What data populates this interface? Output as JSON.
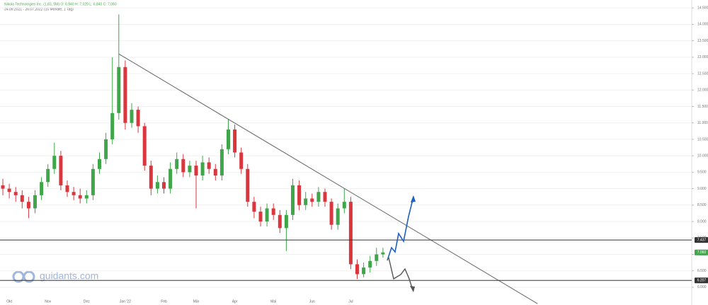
{
  "header": {
    "instrument": "Nikola Technologies Inc. (1,83, 5M)  O: 6,940  H: 7,020  L: 6,840  C: 7,060",
    "period": "24.09.2021 - 26.07.2022 (10 Monate, 1 Tag)"
  },
  "watermark": "guidants.com",
  "chart_data": {
    "type": "candlestick",
    "categories": [
      null,
      "Okt",
      null,
      null,
      null,
      null,
      null,
      "Nov",
      null,
      null,
      null,
      null,
      null,
      "Dez",
      null,
      null,
      null,
      null,
      null,
      "Jan '22",
      null,
      null,
      null,
      null,
      null,
      "Feb",
      null,
      null,
      null,
      null,
      "Mär",
      null,
      null,
      null,
      null,
      null,
      "Apr",
      null,
      null,
      null,
      null,
      null,
      "Mai",
      null,
      null,
      null,
      null,
      null,
      "Jun",
      null,
      null,
      null,
      null,
      null,
      "Jul",
      null,
      null,
      null,
      null,
      null
    ],
    "open": [
      9.1,
      9.0,
      8.9,
      8.8,
      8.6,
      8.4,
      8.8,
      9.2,
      9.6,
      10.0,
      9.1,
      8.9,
      8.8,
      8.7,
      8.8,
      9.6,
      9.9,
      10.5,
      11.3,
      12.7,
      11.0,
      11.4,
      10.9,
      9.7,
      9.0,
      9.2,
      9.0,
      9.6,
      9.9,
      9.5,
      9.7,
      9.4,
      9.8,
      9.6,
      9.4,
      10.2,
      10.8,
      10.1,
      9.6,
      8.6,
      8.3,
      8.0,
      8.4,
      8.2,
      7.8,
      8.2,
      9.1,
      8.5,
      8.7,
      8.6,
      8.9,
      8.6,
      7.9,
      8.4,
      8.6,
      6.7,
      6.4,
      6.6,
      6.8,
      7.0
    ],
    "high": [
      9.3,
      9.15,
      9.05,
      8.95,
      8.75,
      8.95,
      9.35,
      9.75,
      10.4,
      10.15,
      9.25,
      9.05,
      9.0,
      8.95,
      9.75,
      10.1,
      10.7,
      13.0,
      14.3,
      12.9,
      11.6,
      11.5,
      11.0,
      9.85,
      9.4,
      9.35,
      9.8,
      10.1,
      10.05,
      9.85,
      9.85,
      10.0,
      9.95,
      9.75,
      10.35,
      11.1,
      10.95,
      10.25,
      9.75,
      8.75,
      8.45,
      8.55,
      8.55,
      8.35,
      8.35,
      9.3,
      9.25,
      8.9,
      8.85,
      9.05,
      9.0,
      8.7,
      8.55,
      9.0,
      8.75,
      6.85,
      6.75,
      6.95,
      7.2,
      7.2
    ],
    "low": [
      8.8,
      8.7,
      8.6,
      8.4,
      8.1,
      8.25,
      8.65,
      9.05,
      9.45,
      8.95,
      8.75,
      8.65,
      8.55,
      8.55,
      8.65,
      9.45,
      9.75,
      10.35,
      11.1,
      10.8,
      10.85,
      10.7,
      9.55,
      8.8,
      8.85,
      8.85,
      8.85,
      9.45,
      9.35,
      9.35,
      8.4,
      9.25,
      9.45,
      9.25,
      9.25,
      10.05,
      9.95,
      9.45,
      8.45,
      8.1,
      7.85,
      7.85,
      8.05,
      7.65,
      7.1,
      8.05,
      8.35,
      8.35,
      8.45,
      8.45,
      8.45,
      7.75,
      7.75,
      8.25,
      6.55,
      6.25,
      6.3,
      6.45,
      6.65,
      6.9
    ],
    "close": [
      9.0,
      8.9,
      8.8,
      8.6,
      8.4,
      8.8,
      9.2,
      9.6,
      10.0,
      9.1,
      8.9,
      8.8,
      8.7,
      8.8,
      9.6,
      9.9,
      10.5,
      11.3,
      12.7,
      11.0,
      11.4,
      10.9,
      9.7,
      9.0,
      9.2,
      9.0,
      9.6,
      9.9,
      9.5,
      9.7,
      9.4,
      9.8,
      9.6,
      9.4,
      10.2,
      10.8,
      10.1,
      9.6,
      8.6,
      8.3,
      8.0,
      8.4,
      8.2,
      7.8,
      8.2,
      9.1,
      8.5,
      8.7,
      8.6,
      8.9,
      8.6,
      7.9,
      8.4,
      8.6,
      6.7,
      6.4,
      6.6,
      6.8,
      7.0,
      7.06
    ],
    "up_color": "#3fa64a",
    "down_color": "#d9363e",
    "ylim": [
      5.46,
      14.74
    ],
    "yticks": [
      {
        "value": 6,
        "label": "6.000"
      },
      {
        "value": 6.5,
        "label": "6.500"
      },
      {
        "value": 7,
        "label": "7.000"
      },
      {
        "value": 7.5,
        "label": "7.500"
      },
      {
        "value": 8,
        "label": "8.000"
      },
      {
        "value": 8.5,
        "label": "8.500"
      },
      {
        "value": 9,
        "label": "9.000"
      },
      {
        "value": 9.5,
        "label": "9.500"
      },
      {
        "value": 10,
        "label": "10.000"
      },
      {
        "value": 10.5,
        "label": "10.500"
      },
      {
        "value": 11,
        "label": "11.000"
      },
      {
        "value": 11.5,
        "label": "11.500"
      },
      {
        "value": 12,
        "label": "12.000"
      },
      {
        "value": 12.5,
        "label": "12.500"
      },
      {
        "value": 13,
        "label": "13.000"
      },
      {
        "value": 13.5,
        "label": "13.500"
      },
      {
        "value": 14,
        "label": "14.000"
      },
      {
        "value": 14.5,
        "label": "14.500"
      }
    ],
    "grid": true,
    "levels": [
      {
        "value": 7.437,
        "label": "7.437",
        "color": "#333333"
      },
      {
        "value": 6.207,
        "label": "6.207",
        "color": "#333333"
      }
    ],
    "last_price": {
      "value": 7.06,
      "label": "7.060",
      "color": "#3fa64a"
    },
    "trendline": {
      "x": [
        18,
        83
      ],
      "y": [
        13.1,
        5.5
      ]
    }
  }
}
